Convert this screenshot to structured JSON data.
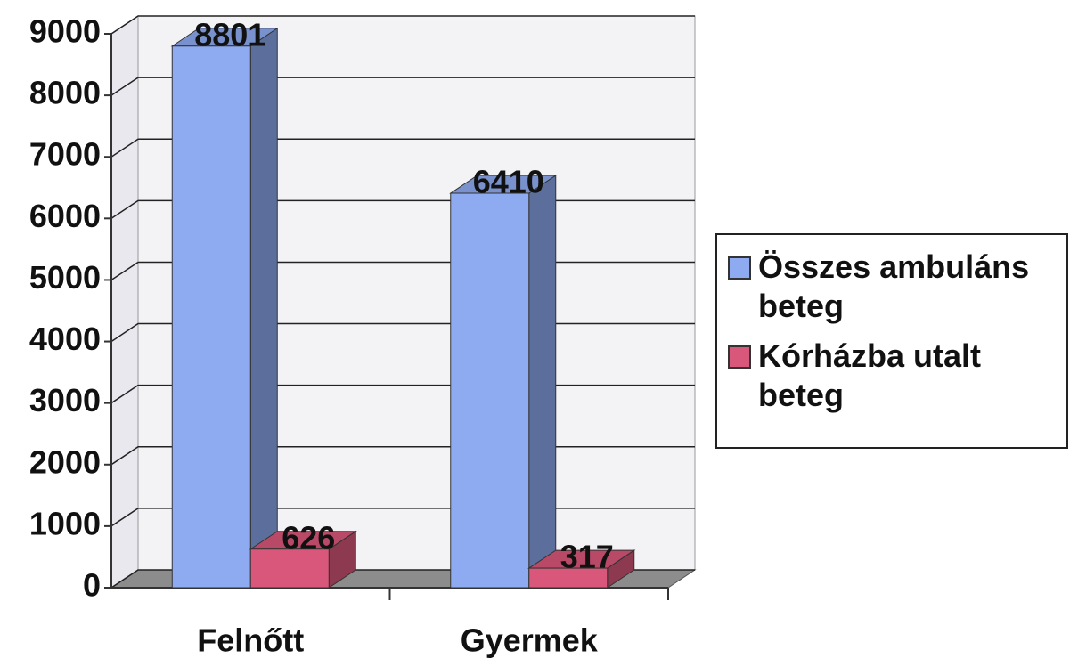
{
  "chart_data": {
    "type": "bar3d",
    "categories": [
      "Felnőtt",
      "Gyermek"
    ],
    "series": [
      {
        "name": "Összes ambuláns beteg",
        "color": "#8eaaf0",
        "values": [
          8801,
          6410
        ]
      },
      {
        "name": "Kórházba utalt beteg",
        "color": "#d9577a",
        "values": [
          626,
          317
        ]
      }
    ],
    "ylim": [
      0,
      9000
    ],
    "yticks": [
      0,
      1000,
      2000,
      3000,
      4000,
      5000,
      6000,
      7000,
      8000,
      9000
    ],
    "grid": true,
    "legend": "right"
  }
}
